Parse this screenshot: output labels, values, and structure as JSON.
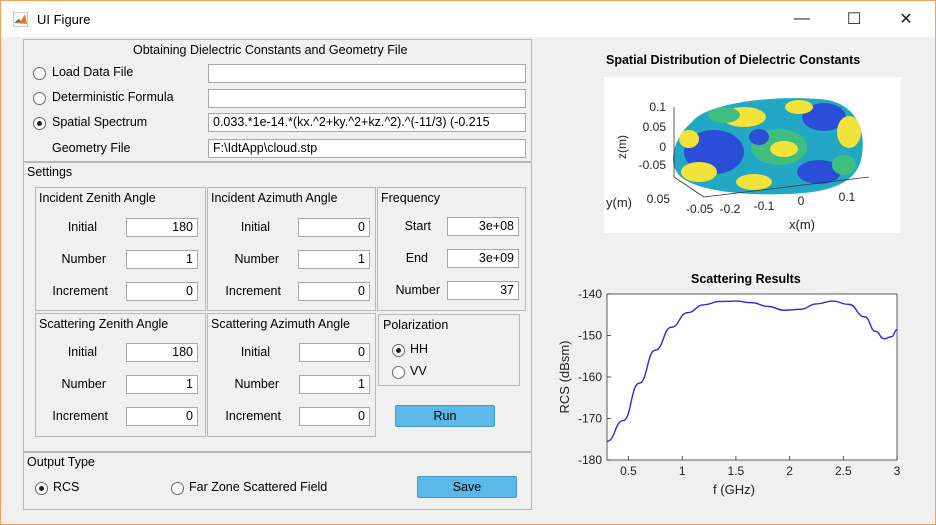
{
  "window": {
    "title": "UI Figure",
    "minimize": "—",
    "maximize": "☐",
    "close": "✕"
  },
  "input_panel": {
    "title": "Obtaining Dielectric Constants and Geometry File",
    "load_data": {
      "label": "Load Data File",
      "value": "",
      "selected": false
    },
    "deterministic": {
      "label": "Deterministic Formula",
      "value": "",
      "selected": false
    },
    "spatial": {
      "label": "Spatial Spectrum",
      "value": "0.033.*1e-14.*(kx.^2+ky.^2+kz.^2).^(-11/3) (-0.215",
      "selected": true
    },
    "geometry": {
      "label": "Geometry File",
      "value": "F:\\IdtApp\\cloud.stp"
    }
  },
  "settings": {
    "title": "Settings",
    "incident_zenith": {
      "title": "Incident Zenith Angle",
      "initial_label": "Initial",
      "initial": "180",
      "number_label": "Number",
      "number": "1",
      "increment_label": "Increment",
      "increment": "0"
    },
    "incident_azimuth": {
      "title": "Incident Azimuth Angle",
      "initial_label": "Initial",
      "initial": "0",
      "number_label": "Number",
      "number": "1",
      "increment_label": "Increment",
      "increment": "0"
    },
    "frequency": {
      "title": "Frequency",
      "start_label": "Start",
      "start": "3e+08",
      "end_label": "End",
      "end": "3e+09",
      "number_label": "Number",
      "number": "37"
    },
    "scattering_zenith": {
      "title": "Scattering Zenith Angle",
      "initial_label": "Initial",
      "initial": "180",
      "number_label": "Number",
      "number": "1",
      "increment_label": "Increment",
      "increment": "0"
    },
    "scattering_azimuth": {
      "title": "Scattering Azimuth Angle",
      "initial_label": "Initial",
      "initial": "0",
      "number_label": "Number",
      "number": "1",
      "increment_label": "Increment",
      "increment": "0"
    },
    "polarization": {
      "title": "Polarization",
      "hh": "HH",
      "vv": "VV",
      "selected": "HH"
    },
    "run_label": "Run"
  },
  "output": {
    "title": "Output Type",
    "rcs": "RCS",
    "far_zone": "Far Zone Scattered Field",
    "selected": "RCS",
    "save_label": "Save"
  },
  "plot3d": {
    "title": "Spatial Distribution of Dielectric Constants",
    "z_ticks": [
      "0.1",
      "0.05",
      "0",
      "-0.05"
    ],
    "zlabel": "z(m)",
    "y_ticks": [
      "0.05",
      "-0.05"
    ],
    "ylabel": "y(m)",
    "x_ticks": [
      "-0.2",
      "-0.1",
      "0",
      "0.1"
    ],
    "xlabel": "x(m)",
    "colors": {
      "blue": "#2a4fd6",
      "teal": "#22a8c4",
      "green": "#3fbf7f",
      "yellow": "#f2e23a"
    }
  },
  "chart_data": {
    "type": "line",
    "title": "Scattering Results",
    "xlabel": "f  (GHz)",
    "ylabel": "RCS (dBsm)",
    "xlim": [
      0.3,
      3.0
    ],
    "ylim": [
      -180,
      -140
    ],
    "x_ticks": [
      0.5,
      1,
      1.5,
      2,
      2.5,
      3
    ],
    "x_tick_labels": [
      "0.5",
      "1",
      "1.5",
      "2",
      "2.5",
      "3"
    ],
    "y_ticks": [
      -140,
      -150,
      -160,
      -170,
      -180
    ],
    "y_tick_labels": [
      "-140",
      "-150",
      "-160",
      "-170",
      "-180"
    ],
    "series": [
      {
        "color": "#2a2ad6",
        "x": [
          0.3,
          0.45,
          0.6,
          0.75,
          0.9,
          1.05,
          1.2,
          1.35,
          1.5,
          1.65,
          1.8,
          1.95,
          2.1,
          2.25,
          2.4,
          2.55,
          2.7,
          2.8,
          2.88,
          2.95,
          3.0
        ],
        "y": [
          -175.5,
          -170.5,
          -161.5,
          -153.5,
          -148.0,
          -144.5,
          -142.6,
          -141.8,
          -141.7,
          -142.1,
          -143.0,
          -143.9,
          -143.7,
          -142.4,
          -141.7,
          -142.5,
          -145.5,
          -149.0,
          -150.8,
          -150.3,
          -148.6
        ]
      }
    ]
  }
}
